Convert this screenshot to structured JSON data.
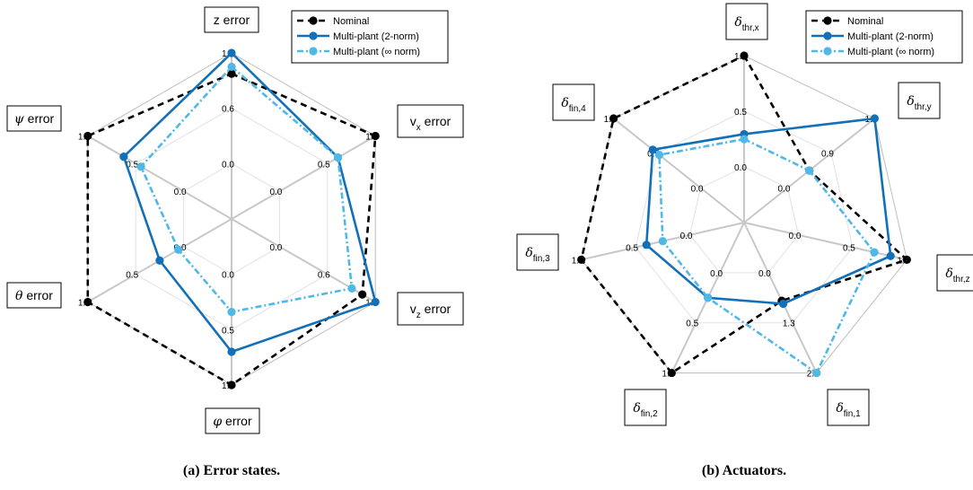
{
  "chart_data": [
    {
      "type": "radar",
      "caption": "(a) Error states.",
      "axes": [
        {
          "label": "z error",
          "label_main": "z",
          "label_sub": "",
          "label_rest": " error",
          "italic": false,
          "ticks": [
            "0.0",
            "0.6",
            "1.2"
          ]
        },
        {
          "label": "v_x error",
          "label_main": "v",
          "label_sub": "x",
          "label_rest": " error",
          "italic": false,
          "ticks": [
            "0.0",
            "0.5",
            "1.0"
          ]
        },
        {
          "label": "v_z error",
          "label_main": "v",
          "label_sub": "z",
          "label_rest": " error",
          "italic": false,
          "ticks": [
            "0.0",
            "0.6",
            "1.1"
          ]
        },
        {
          "label": "φ error",
          "label_main": "φ",
          "label_sub": "",
          "label_rest": " error",
          "italic": true,
          "ticks": [
            "0.0",
            "0.5",
            "1.0"
          ]
        },
        {
          "label": "θ error",
          "label_main": "θ",
          "label_sub": "",
          "label_rest": " error",
          "italic": true,
          "ticks": [
            "0.0",
            "0.5",
            "1.0"
          ]
        },
        {
          "label": "ψ error",
          "label_main": "ψ",
          "label_sub": "",
          "label_rest": " error",
          "italic": true,
          "ticks": [
            "0.0",
            "0.5",
            "1.0"
          ]
        }
      ],
      "axes_max": [
        1.2,
        1.0,
        1.1,
        1.0,
        1.0,
        1.0
      ],
      "series": [
        {
          "name": "Nominal",
          "values": [
            1.05,
            1.0,
            1.0,
            1.0,
            1.0,
            1.0
          ]
        },
        {
          "name": "Multi-plant (2-norm)",
          "values": [
            1.2,
            0.74,
            1.1,
            0.8,
            0.5,
            0.75
          ]
        },
        {
          "name": "Multi-plant (∞ norm)",
          "values": [
            1.1,
            0.74,
            0.92,
            0.56,
            0.37,
            0.63
          ]
        }
      ],
      "legend": {
        "position": "top-right"
      }
    },
    {
      "type": "radar",
      "caption": "(b) Actuators.",
      "axes": [
        {
          "label": "δ_thr,x",
          "label_main": "δ",
          "label_sub": "thr,x",
          "label_rest": "",
          "italic": true,
          "ticks": [
            "0.0",
            "0.5",
            "1.0"
          ]
        },
        {
          "label": "δ_thr,y",
          "label_main": "δ",
          "label_sub": "thr,y",
          "label_rest": "",
          "italic": true,
          "ticks": [
            "0.0",
            "0.9",
            "1.9"
          ]
        },
        {
          "label": "δ_thr,z",
          "label_main": "δ",
          "label_sub": "thr,z",
          "label_rest": "",
          "italic": true,
          "ticks": [
            "0.0",
            "0.5",
            "1.0"
          ]
        },
        {
          "label": "δ_fin,1",
          "label_main": "δ",
          "label_sub": "fin,1",
          "label_rest": "",
          "italic": true,
          "ticks": [
            "0.0",
            "1.3",
            "2.5"
          ]
        },
        {
          "label": "δ_fin,2",
          "label_main": "δ",
          "label_sub": "fin,2",
          "label_rest": "",
          "italic": true,
          "ticks": [
            "0.0",
            "0.5",
            "1.0"
          ]
        },
        {
          "label": "δ_fin,3",
          "label_main": "δ",
          "label_sub": "fin,3",
          "label_rest": "",
          "italic": true,
          "ticks": [
            "0.0",
            "0.5",
            "1.0"
          ]
        },
        {
          "label": "δ_fin,4",
          "label_main": "δ",
          "label_sub": "fin,4",
          "label_rest": "",
          "italic": true,
          "ticks": [
            "0.0",
            "0.5",
            "1.0"
          ]
        }
      ],
      "axes_max": [
        1.0,
        1.9,
        1.0,
        2.5,
        1.0,
        1.0,
        1.0
      ],
      "series": [
        {
          "name": "Nominal",
          "values": [
            1.0,
            0.95,
            1.0,
            1.3,
            1.0,
            1.0,
            1.0
          ]
        },
        {
          "name": "Multi-plant (2-norm)",
          "values": [
            0.53,
            1.9,
            0.9,
            1.35,
            0.5,
            0.6,
            0.7
          ]
        },
        {
          "name": "Multi-plant (∞ norm)",
          "values": [
            0.5,
            0.95,
            0.8,
            2.5,
            0.5,
            0.5,
            0.65
          ]
        }
      ],
      "legend": {
        "position": "top-right"
      }
    }
  ],
  "legend_entries": [
    "Nominal",
    "Multi-plant (2-norm)",
    "Multi-plant (∞ norm)"
  ],
  "colors": {
    "nominal": "#000000",
    "two_norm": "#1170b8",
    "inf_norm": "#4fb8e6",
    "grid_major": "#c8c8c8",
    "grid_minor": "#e2e2e2"
  }
}
